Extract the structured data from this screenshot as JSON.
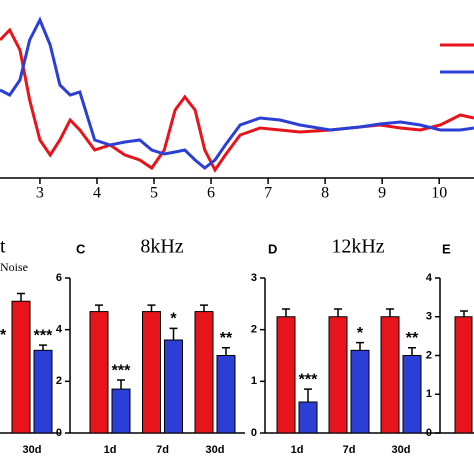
{
  "chart_data": [
    {
      "type": "line",
      "x": [
        2.3,
        2.47,
        2.65,
        2.82,
        3,
        3.18,
        3.35,
        3.53,
        3.7,
        3.96,
        4.23,
        4.49,
        4.75,
        4.96,
        5.18,
        5.37,
        5.54,
        5.72,
        5.89,
        6.07,
        6.25,
        6.51,
        6.86,
        7.21,
        7.56,
        8.09,
        8.61,
        8.96,
        9.32,
        9.67,
        10.02,
        10.37,
        10.61
      ],
      "series": [
        {
          "color": "#e8141b",
          "values": [
            138,
            148,
            128,
            78,
            38,
            23,
            38,
            58,
            48,
            28,
            33,
            23,
            18,
            10,
            28,
            68,
            81,
            68,
            28,
            8,
            23,
            43,
            50,
            48,
            46,
            48,
            51,
            53,
            50,
            48,
            53,
            63,
            60
          ]
        },
        {
          "color": "#2b3fd6",
          "values": [
            88,
            83,
            98,
            138,
            158,
            133,
            93,
            83,
            86,
            38,
            33,
            36,
            38,
            28,
            24,
            26,
            28,
            18,
            10,
            18,
            33,
            53,
            60,
            58,
            53,
            48,
            51,
            54,
            56,
            53,
            48,
            48,
            50
          ]
        }
      ],
      "xlim": [
        2.3,
        10.61
      ],
      "ylim": [
        0,
        178
      ],
      "xticks": [
        3,
        4,
        5,
        6,
        7,
        8,
        9,
        10
      ]
    },
    {
      "type": "bar",
      "title": "t",
      "legend_text": "Noise",
      "annotations": [
        "*"
      ],
      "categories": [
        "30d"
      ],
      "series": [
        {
          "color": "#e8141b",
          "values": [
            5.1
          ],
          "errors": [
            0.3
          ]
        },
        {
          "color": "#2b3fd6",
          "values": [
            3.2
          ],
          "errors": [
            0.2
          ]
        }
      ],
      "value_labels": [
        [
          null
        ],
        [
          "***"
        ]
      ],
      "ylim": [
        0,
        6
      ]
    },
    {
      "type": "bar",
      "panel": "C",
      "title": "8kHz",
      "categories": [
        "1d",
        "7d",
        "30d"
      ],
      "series": [
        {
          "color": "#e8141b",
          "values": [
            4.7,
            4.7,
            4.7
          ],
          "errors": [
            0.25,
            0.25,
            0.25
          ]
        },
        {
          "color": "#2b3fd6",
          "values": [
            1.7,
            3.6,
            3.0
          ],
          "errors": [
            0.35,
            0.45,
            0.3
          ]
        }
      ],
      "value_labels": [
        [
          null,
          null,
          null
        ],
        [
          "***",
          "*",
          "**"
        ]
      ],
      "ylim": [
        0,
        6
      ],
      "yticks": [
        0,
        2,
        4,
        6
      ]
    },
    {
      "type": "bar",
      "panel": "D",
      "title": "12kHz",
      "categories": [
        "1d",
        "7d",
        "30d"
      ],
      "series": [
        {
          "color": "#e8141b",
          "values": [
            2.25,
            2.25,
            2.25
          ],
          "errors": [
            0.15,
            0.15,
            0.15
          ]
        },
        {
          "color": "#2b3fd6",
          "values": [
            0.6,
            1.6,
            1.5
          ],
          "errors": [
            0.25,
            0.15,
            0.15
          ]
        }
      ],
      "value_labels": [
        [
          null,
          null,
          null
        ],
        [
          "***",
          "*",
          "**"
        ]
      ],
      "ylim": [
        0,
        3
      ],
      "yticks": [
        0,
        1,
        2,
        3
      ]
    },
    {
      "type": "bar",
      "panel": "E",
      "categories": [
        null
      ],
      "series": [
        {
          "color": "#e8141b",
          "values": [
            3.0
          ],
          "errors": [
            0.15
          ]
        }
      ],
      "ylim": [
        0,
        4
      ],
      "yticks": [
        0,
        1,
        2,
        3,
        4
      ]
    }
  ]
}
